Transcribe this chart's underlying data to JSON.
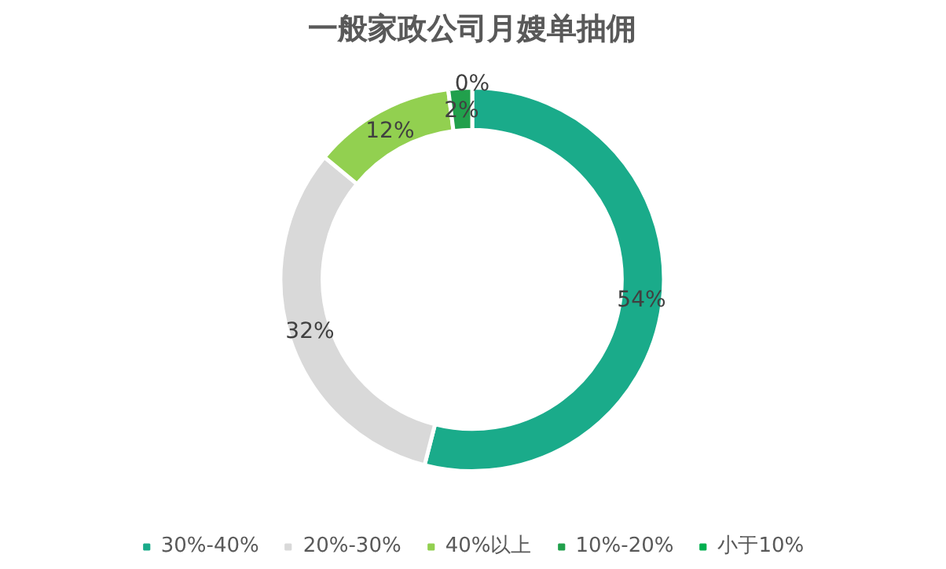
{
  "chart_data": {
    "type": "donut",
    "title": "一般家政公司月嫂单抽佣",
    "categories": [
      "30%-40%",
      "20%-30%",
      "40%以上",
      "10%-20%",
      "小于10%"
    ],
    "values": [
      54,
      32,
      12,
      2,
      0
    ],
    "colors": [
      "#1aab8a",
      "#d9d9d9",
      "#92d050",
      "#21a04c",
      "#00b050"
    ],
    "value_labels": [
      "54%",
      "32%",
      "12%",
      "2%",
      "0%"
    ],
    "legend": "bottom"
  }
}
